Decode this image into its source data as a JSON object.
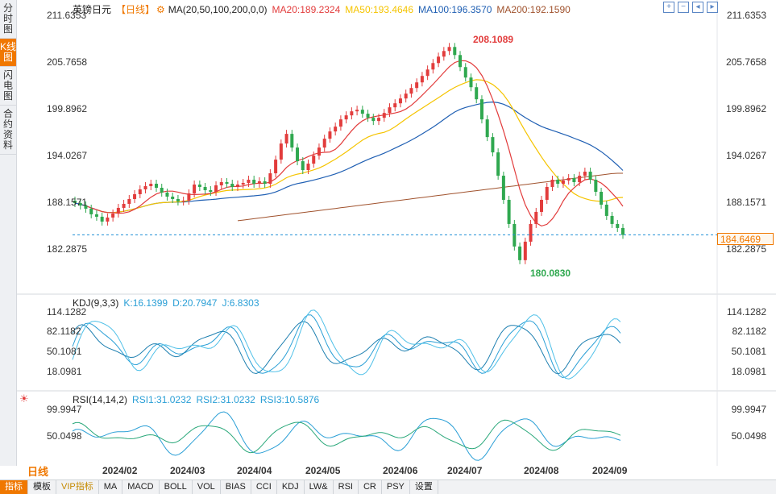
{
  "left_tabs": [
    {
      "label": "分时图",
      "active": false
    },
    {
      "label": "K线图",
      "active": true
    },
    {
      "label": "闪电图",
      "active": false
    },
    {
      "label": "合约资料",
      "active": false
    }
  ],
  "main": {
    "symbol": "英镑日元",
    "period_tag": "【日线】",
    "ma_label": "MA(20,50,100,200,0,0)",
    "ma20": "MA20:189.2324",
    "ma50": "MA50:193.4646",
    "ma100": "MA100:196.3570",
    "ma200": "MA200:192.1590",
    "y_ticks": [
      "211.6353",
      "205.7658",
      "199.8962",
      "194.0267",
      "188.1571",
      "182.2875"
    ],
    "high_label": "208.1089",
    "low_label": "180.0830",
    "last_price": "184.6469"
  },
  "kdj": {
    "label": "KDJ(9,3,3)",
    "k": "K:16.1399",
    "d": "D:20.7947",
    "j": "J:6.8303",
    "y_ticks": [
      "114.1282",
      "82.1182",
      "50.1081",
      "18.0981"
    ]
  },
  "rsi": {
    "label": "RSI(14,14,2)",
    "rsi1": "RSI1:31.0232",
    "rsi2": "RSI2:31.0232",
    "rsi3": "RSI3:10.5876",
    "y_ticks": [
      "99.9947",
      "50.0498"
    ]
  },
  "x_axis": [
    "2024/02",
    "2024/03",
    "2024/04",
    "2024/05",
    "2024/06",
    "2024/07",
    "2024/08",
    "2024/09"
  ],
  "period_selector": "日线",
  "bottom_tabs": [
    "指标",
    "模板",
    "VIP指标",
    "MA",
    "MACD",
    "BOLL",
    "VOL",
    "BIAS",
    "CCI",
    "KDJ",
    "LW&",
    "RSI",
    "CR",
    "PSY",
    "设置"
  ],
  "colors": {
    "up": "#e23c3c",
    "down": "#2fa84f",
    "ma20": "#e23c3c",
    "ma50": "#f5c400",
    "ma100": "#1f5fb3",
    "ma200": "#a0522d",
    "accent": "#f07800"
  },
  "icons": [
    "settings-gear-icon",
    "zoom-in-icon",
    "zoom-out-icon",
    "arrow-left-icon",
    "arrow-right-icon"
  ],
  "chart_data": {
    "type": "candlestick",
    "close_series": [
      188.6,
      188.3,
      187.9,
      187.2,
      186.9,
      186.3,
      186.8,
      187.3,
      188.0,
      188.5,
      189.1,
      189.7,
      190.3,
      190.7,
      191.0,
      190.5,
      189.9,
      189.4,
      189.1,
      188.8,
      188.9,
      189.8,
      190.9,
      190.6,
      190.2,
      190.0,
      190.8,
      191.2,
      191.0,
      190.6,
      190.9,
      191.1,
      191.5,
      191.0,
      191.3,
      191.0,
      192.3,
      194.0,
      196.0,
      197.2,
      195.5,
      193.8,
      192.7,
      193.5,
      194.5,
      195.5,
      196.6,
      197.5,
      198.1,
      199.0,
      199.5,
      200.0,
      200.2,
      199.7,
      199.2,
      198.8,
      199.2,
      199.8,
      200.5,
      201.0,
      201.6,
      202.2,
      202.9,
      203.6,
      204.4,
      205.2,
      206.0,
      206.8,
      207.5,
      208.0,
      207.0,
      205.5,
      204.2,
      203.0,
      201.5,
      199.0,
      196.8,
      194.9,
      192.0,
      189.0,
      186.0,
      183.2,
      181.5,
      183.8,
      186.0,
      187.5,
      189.0,
      190.6,
      191.5,
      191.0,
      191.4,
      191.7,
      191.2,
      192.0,
      192.5,
      191.5,
      190.0,
      188.4,
      187.0,
      186.0,
      185.5,
      184.65
    ],
    "high": 208.1089,
    "low": 180.083,
    "last": 184.6469,
    "ylim": [
      180.083,
      211.6353
    ]
  }
}
